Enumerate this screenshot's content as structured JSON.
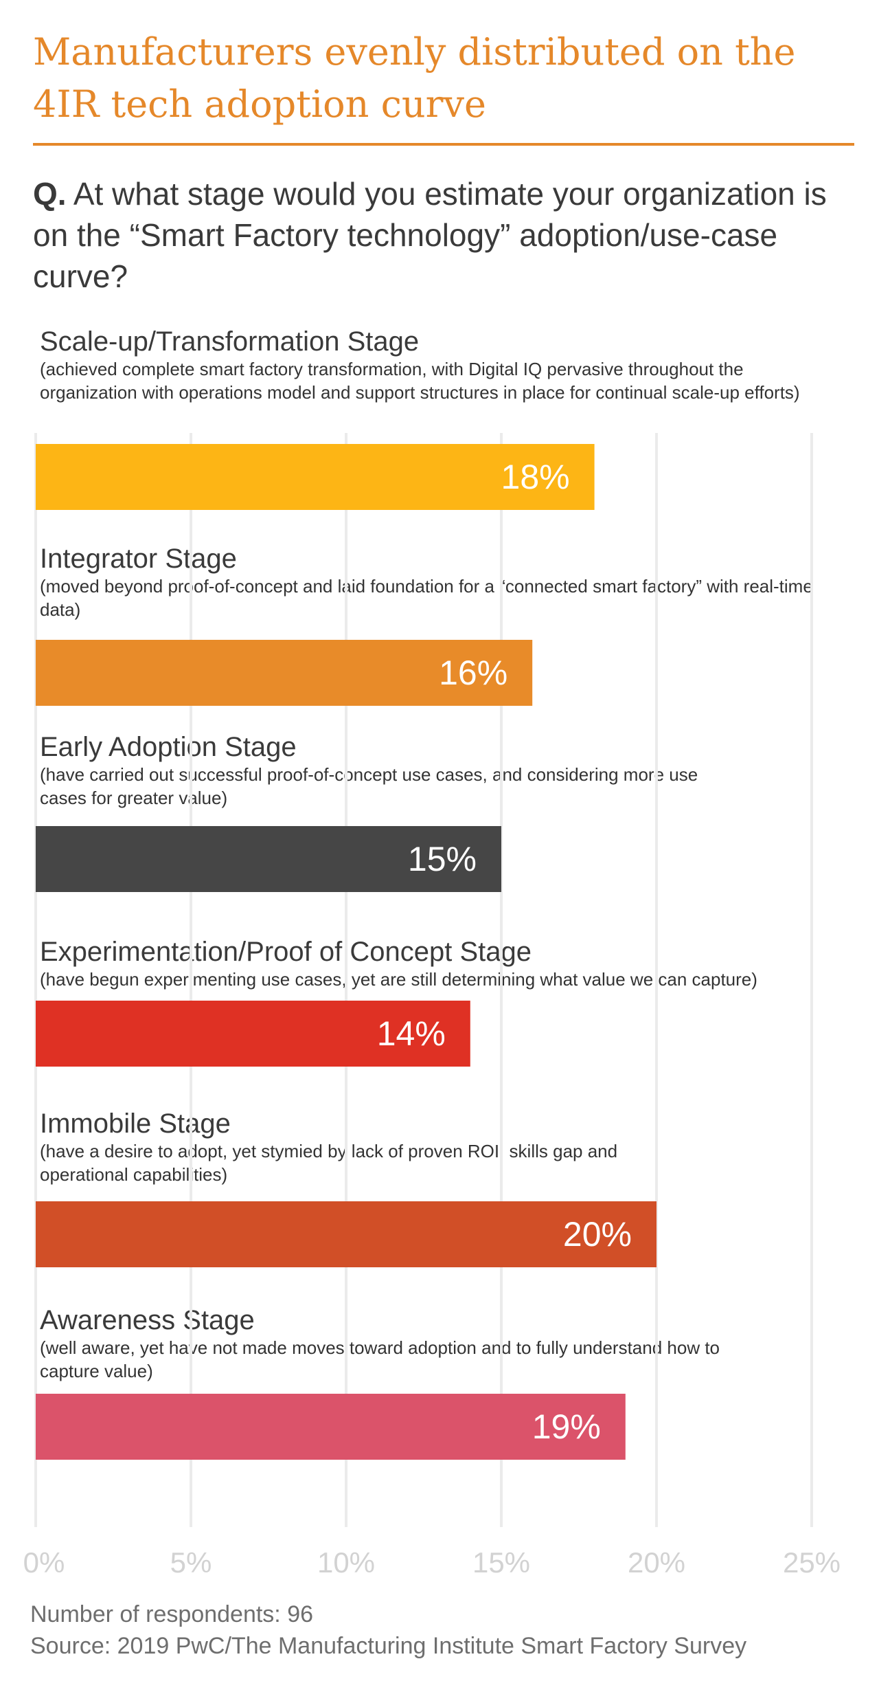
{
  "title": "Manufacturers evenly distributed on the 4IR tech adoption curve",
  "question": {
    "prefix": "Q.",
    "text": "At what stage would you estimate your organization is on the “Smart Factory technology” adoption/use-case curve?"
  },
  "chart_data": {
    "type": "bar",
    "orientation": "horizontal",
    "categories": [
      "Scale-up/Transformation Stage",
      "Integrator Stage",
      "Early Adoption Stage",
      "Experimentation/Proof of Concept Stage",
      "Immobile Stage",
      "Awareness Stage"
    ],
    "descriptions": [
      "(achieved complete smart factory transformation, with Digital IQ pervasive throughout the organization with operations model and support structures in place for continual scale-up efforts)",
      "(moved beyond proof-of-concept and laid foundation for a “connected smart factory” with real-time data)",
      "(have carried out successful proof-of-concept use cases, and considering more use cases for greater value)",
      "(have begun experimenting use cases, yet are still determining what value we can capture)",
      "(have a desire to adopt, yet stymied by lack of proven ROI, skills gap and operational capabilities)",
      "(well aware, yet have not made moves toward adoption and to fully understand how to capture value)"
    ],
    "values": [
      18,
      16,
      15,
      14,
      20,
      19
    ],
    "value_labels": [
      "18%",
      "16%",
      "15%",
      "14%",
      "20%",
      "19%"
    ],
    "colors": [
      "#FDB515",
      "#E88B29",
      "#464646",
      "#DF3124",
      "#D14F27",
      "#DB536A"
    ],
    "xlim": [
      0,
      25
    ],
    "x_ticks": [
      0,
      5,
      10,
      15,
      20,
      25
    ],
    "x_tick_labels": [
      "0%",
      "5%",
      "10%",
      "15%",
      "20%",
      "25%"
    ],
    "grid": true
  },
  "footer": {
    "respondents": "Number of respondents: 96",
    "source": "Source: 2019 PwC/The Manufacturing Institute Smart Factory Survey"
  }
}
